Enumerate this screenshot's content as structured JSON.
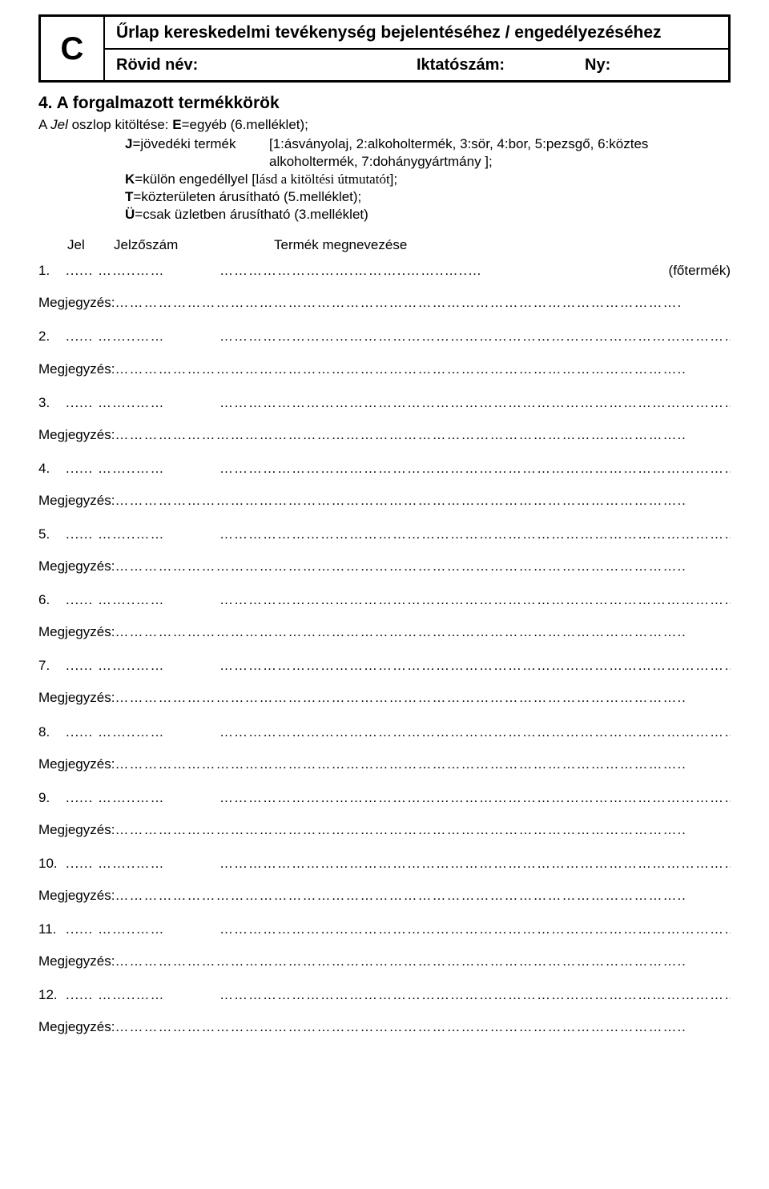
{
  "header": {
    "letter": "C",
    "title": "Űrlap kereskedelmi tevékenység bejelentéséhez / engedélyezéséhez",
    "sub_short_name": "Rövid név:",
    "sub_ref": "Iktatószám:",
    "sub_ny": "Ny:"
  },
  "section": {
    "title": "4. A forgalmazott termékkörök",
    "intro_prefix": "A ",
    "intro_em": "Jel",
    "intro_rest": " oszlop kitöltése: ",
    "intro_b1": "E",
    "intro_t1": "=egyéb    (6.melléklet);",
    "j_key_b": "J",
    "j_key_t": "=jövedéki termék",
    "j_val": "[1:ásványolaj, 2:alkoholtermék, 3:sör, 4:bor, 5:pezsgő, 6:köztes alkoholtermék, 7:dohánygyártmány ];",
    "k_b": "K",
    "k_t": "=külön engedéllyel   [",
    "k_i": "lásd a kitöltési útmutatót",
    "k_end": "];",
    "t_b": "T",
    "t_t": "=közterületen árusítható (5.melléklet);",
    "u_b": "Ü",
    "u_t": "=csak üzletben árusítható (3.melléklet)"
  },
  "table_head": {
    "col1": "Jel",
    "col2": "Jelzőszám",
    "col3": "Termék megnevezése"
  },
  "main_product_suffix": "(főtermék)",
  "note_label": "Megjegyzés:",
  "rows": [
    {
      "n": "1."
    },
    {
      "n": "2."
    },
    {
      "n": "3."
    },
    {
      "n": "4."
    },
    {
      "n": "5."
    },
    {
      "n": "6."
    },
    {
      "n": "7."
    },
    {
      "n": "8."
    },
    {
      "n": "9."
    },
    {
      "n": "10."
    },
    {
      "n": "11."
    },
    {
      "n": "12."
    }
  ],
  "dots": {
    "jel": "......",
    "code": "……..……",
    "name_first": "……………………….………..……..…..…",
    "name_long": "…………………………………………………………………………………………………..",
    "note_first": "……………………………………………………………………………………………………….",
    "note_long": "……………………………………………………………………………………………………….."
  }
}
